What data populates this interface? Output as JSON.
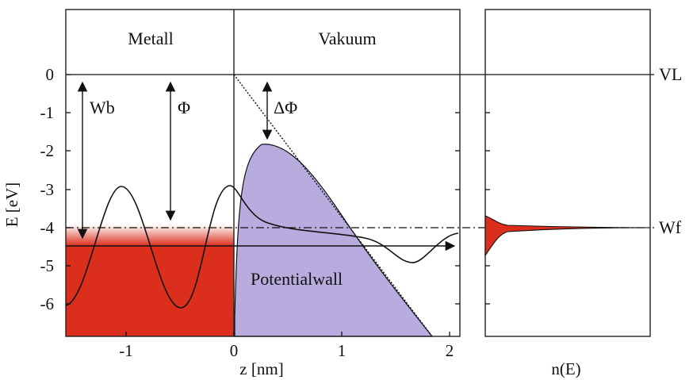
{
  "regions": {
    "metal": "Metall",
    "vacuum": "Vakuum"
  },
  "axes": {
    "y_title": "E [eV]",
    "x_title": "z [nm]",
    "right_x_title": "n(E)",
    "y_ticks": [
      "0",
      "-1",
      "-2",
      "-3",
      "-4",
      "-5",
      "-6"
    ],
    "x_ticks": [
      "-1",
      "0",
      "1",
      "2"
    ]
  },
  "annotations": {
    "wb": "Wb",
    "phi": "Φ",
    "delta_phi": "ΔΦ",
    "potential_wall": "Potentialwall",
    "vl": "VL",
    "wf": "Wf"
  },
  "colors": {
    "metal_fill": "#dc2e1c",
    "wall_fill": "#b7acdd",
    "line": "#111111"
  },
  "diagram_data": {
    "energy_range_eV": [
      -6.8,
      0
    ],
    "z_range_nm": [
      -1.65,
      2.1
    ],
    "vacuum_level_eV": 0,
    "fermi_level_eV": -4.5,
    "fermi_band_top_eV": -4.0,
    "work_function_level_eV": -4.0,
    "potential_wall_peak": {
      "z_nm": 0.3,
      "E_eV": -1.8
    },
    "potential_wall_end_z_nm": 1.85
  }
}
